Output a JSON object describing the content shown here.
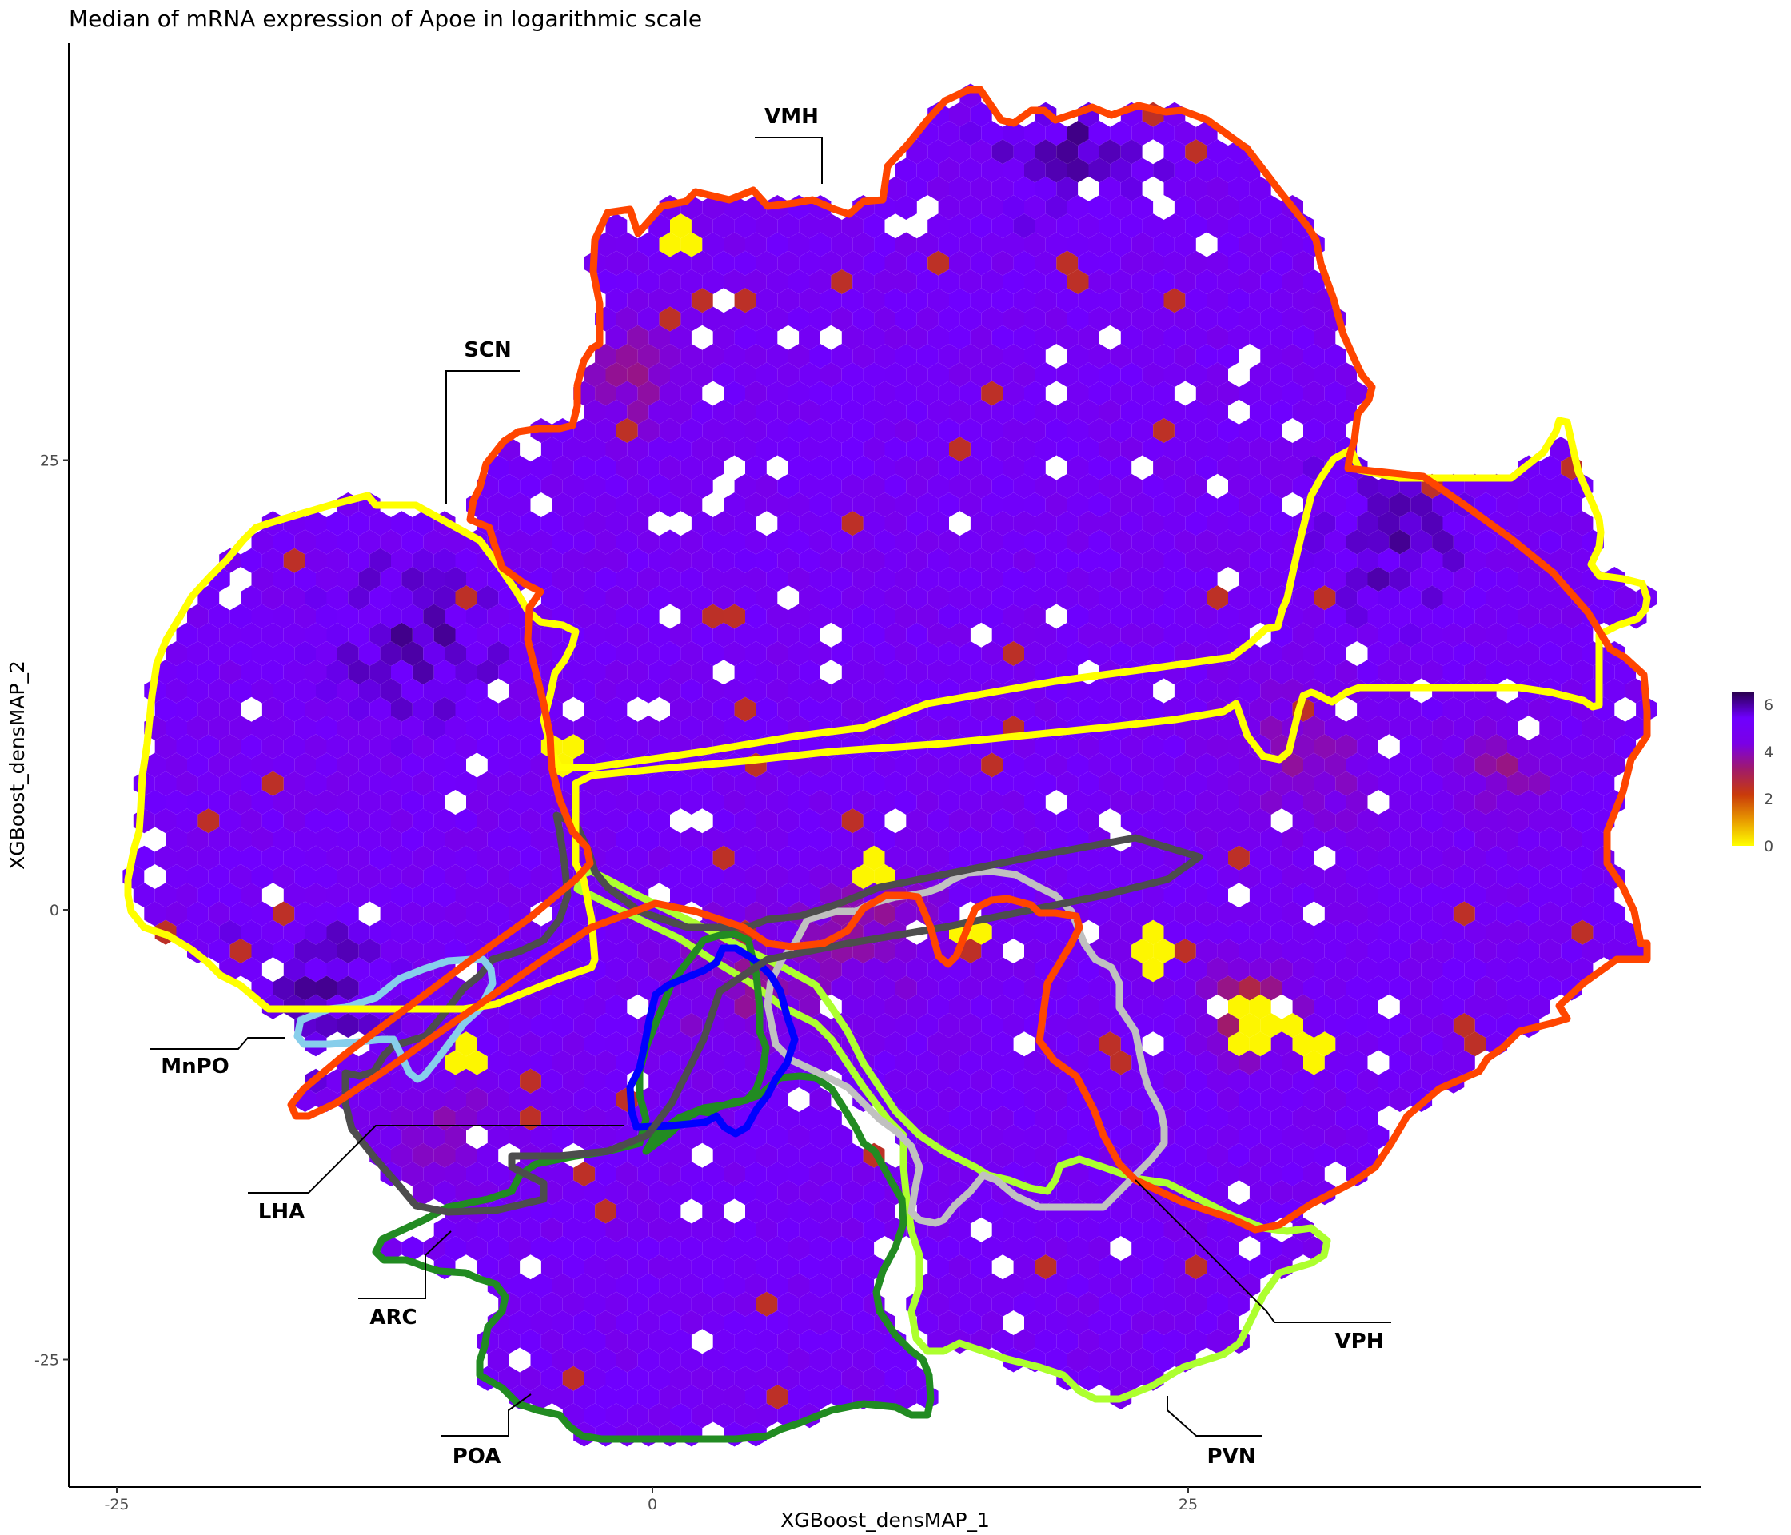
{
  "chart_data": {
    "type": "heatmap",
    "subtype": "hexbin",
    "title": "Median of mRNA expression of Apoe in logarithmic scale",
    "xlabel": "XGBoost_densMAP_1",
    "ylabel": "XGBoost_densMAP_2",
    "x_ticks": [
      -25,
      0,
      25
    ],
    "y_ticks": [
      25,
      0,
      -25
    ],
    "xlim": [
      -27.5,
      49
    ],
    "ylim": [
      -32,
      48
    ],
    "grid": false,
    "colorbar": {
      "placement": "right",
      "ticks": [
        6,
        4,
        2,
        0
      ],
      "range": [
        0,
        6.5
      ],
      "colors": [
        "#ffff00",
        "#e89a00",
        "#c93a0a",
        "#a01a6a",
        "#7a00e6",
        "#6f00ff",
        "#2a0050"
      ]
    },
    "regions": [
      {
        "name": "VMH",
        "color": "#ff4500"
      },
      {
        "name": "SCN",
        "color": "#ffff00"
      },
      {
        "name": "MnPO",
        "color": "#87ceeb"
      },
      {
        "name": "LHA",
        "color": "#4d4d4d"
      },
      {
        "name": "ARC",
        "color": "#0000ff"
      },
      {
        "name": "POA",
        "color": "#228b22"
      },
      {
        "name": "VPH",
        "color": "#c0c0c0"
      },
      {
        "name": "PVN",
        "color": "#adff2f"
      }
    ]
  }
}
